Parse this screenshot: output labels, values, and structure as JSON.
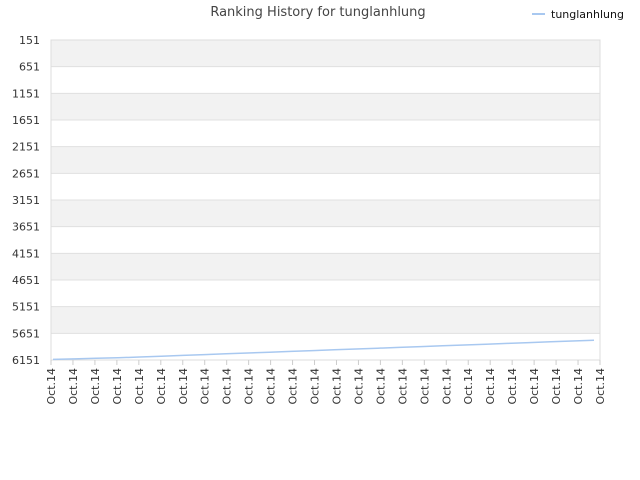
{
  "chart_data": {
    "type": "line",
    "title": "Ranking History for tunglanhlung",
    "xlabel": "",
    "ylabel": "",
    "y_inverted": true,
    "ylim": [
      151,
      6151
    ],
    "y_ticks": [
      "151",
      "651",
      "1151",
      "1651",
      "2151",
      "2651",
      "3151",
      "3651",
      "4151",
      "4651",
      "5151",
      "5651",
      "6151"
    ],
    "x_ticks": [
      "Oct.14",
      "Oct.14",
      "Oct.14",
      "Oct.14",
      "Oct.14",
      "Oct.14",
      "Oct.14",
      "Oct.14",
      "Oct.14",
      "Oct.14",
      "Oct.14",
      "Oct.14",
      "Oct.14",
      "Oct.14",
      "Oct.14",
      "Oct.14",
      "Oct.14",
      "Oct.14",
      "Oct.14",
      "Oct.14",
      "Oct.14",
      "Oct.14",
      "Oct.14",
      "Oct.14",
      "Oct.14",
      "Oct.14"
    ],
    "grid": true,
    "legend_position": "top-right",
    "series": [
      {
        "name": "tunglanhlung",
        "color": "#a8c8f0",
        "values": [
          6140,
          6130,
          6120,
          6110,
          6095,
          6080,
          6065,
          6050,
          6035,
          6020,
          6005,
          5990,
          5975,
          5960,
          5945,
          5930,
          5915,
          5900,
          5885,
          5870,
          5855,
          5840,
          5825,
          5810,
          5795,
          5780
        ]
      }
    ]
  },
  "colors": {
    "band": "#f2f2f2",
    "grid": "#e0e0e0",
    "line": "#a8c8f0"
  }
}
